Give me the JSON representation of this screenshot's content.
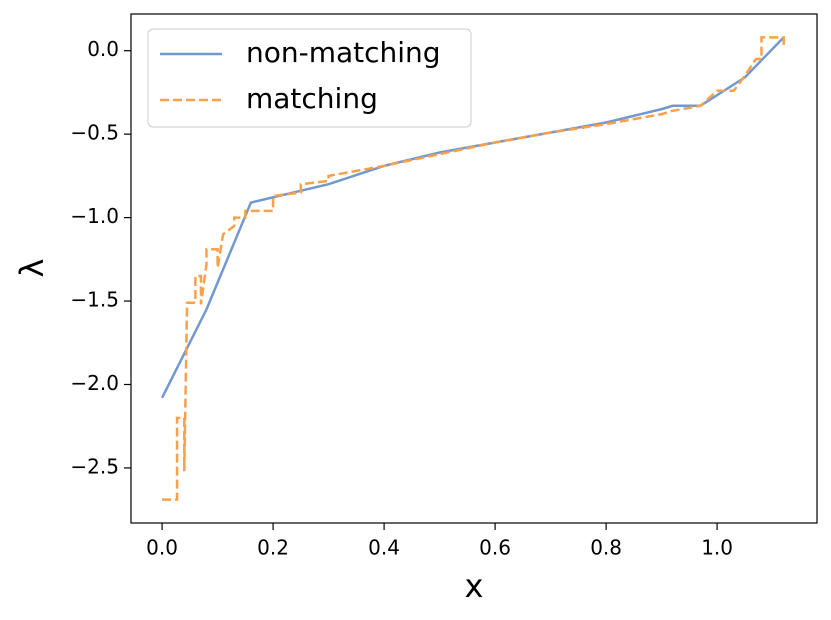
{
  "chart_data": {
    "type": "line",
    "xlabel": "x",
    "ylabel": "λ",
    "xlim": [
      -0.056,
      1.18
    ],
    "ylim": [
      -2.83,
      0.22
    ],
    "xticks": [
      {
        "value": 0,
        "label": "0.0"
      },
      {
        "value": 0.2,
        "label": "0.2"
      },
      {
        "value": 0.4,
        "label": "0.4"
      },
      {
        "value": 0.6,
        "label": "0.6"
      },
      {
        "value": 0.8,
        "label": "0.8"
      },
      {
        "value": 1,
        "label": "1.0"
      }
    ],
    "yticks": [
      {
        "value": 0,
        "label": "0.0"
      },
      {
        "value": -0.5,
        "label": "−0.5"
      },
      {
        "value": -1,
        "label": "−1.0"
      },
      {
        "value": -1.5,
        "label": "−1.5"
      },
      {
        "value": -2,
        "label": "−2.0"
      },
      {
        "value": -2.5,
        "label": "−2.5"
      }
    ],
    "legend": "upper left",
    "series": [
      {
        "name": "non-matching",
        "color": "#7199cf",
        "style": "solid",
        "x": [
          0,
          0.08,
          0.16,
          0.3,
          0.4,
          0.5,
          0.6,
          0.7,
          0.8,
          0.9,
          0.92,
          0.97,
          1.05,
          1.12
        ],
        "values": [
          -2.08,
          -1.55,
          -0.91,
          -0.8,
          -0.69,
          -0.61,
          -0.55,
          -0.49,
          -0.43,
          -0.35,
          -0.33,
          -0.33,
          -0.16,
          0.08
        ]
      },
      {
        "name": "matching",
        "color": "#f9a04a",
        "style": "dashed",
        "x": [
          0,
          0.027,
          0.027,
          0.04,
          0.04,
          0.045,
          0.06,
          0.06,
          0.07,
          0.07,
          0.08,
          0.08,
          0.1,
          0.1,
          0.11,
          0.13,
          0.13,
          0.15,
          0.15,
          0.2,
          0.2,
          0.25,
          0.25,
          0.3,
          0.3,
          0.4,
          0.5,
          0.6,
          0.7,
          0.8,
          0.9,
          0.92,
          0.97,
          1.0,
          1.03,
          1.05,
          1.07,
          1.08,
          1.08,
          1.12,
          1.12
        ],
        "values": [
          -2.69,
          -2.69,
          -2.2,
          -2.2,
          -2.52,
          -1.51,
          -1.51,
          -1.35,
          -1.35,
          -1.52,
          -1.28,
          -1.19,
          -1.19,
          -1.3,
          -1.1,
          -1.05,
          -1.0,
          -1.0,
          -0.96,
          -0.96,
          -0.87,
          -0.85,
          -0.8,
          -0.78,
          -0.75,
          -0.69,
          -0.62,
          -0.55,
          -0.49,
          -0.44,
          -0.38,
          -0.36,
          -0.33,
          -0.24,
          -0.24,
          -0.15,
          -0.05,
          -0.05,
          0.08,
          0.08,
          0.02
        ]
      }
    ]
  }
}
